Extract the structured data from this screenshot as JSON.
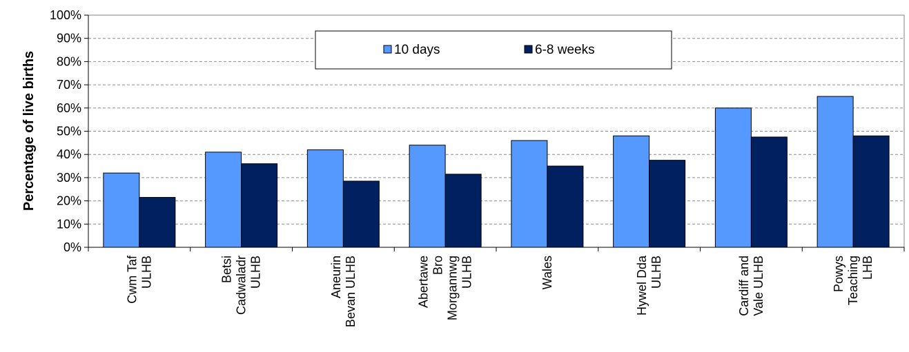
{
  "chart_data": {
    "type": "bar",
    "ylabel": "Percentage of live births",
    "xlabel": "",
    "ylim": [
      0,
      100
    ],
    "yticks": [
      "0%",
      "10%",
      "20%",
      "30%",
      "40%",
      "50%",
      "60%",
      "70%",
      "80%",
      "90%",
      "100%"
    ],
    "grid": "horizontal dashed",
    "legend_position": "top-center",
    "categories": [
      [
        "Cwm Taf",
        "ULHB"
      ],
      [
        "Betsi",
        "Cadwaladr",
        "ULHB"
      ],
      [
        "Aneurin",
        "Bevan ULHB"
      ],
      [
        "Abertawe",
        "Bro",
        "Morgannwg",
        "ULHB"
      ],
      [
        "Wales"
      ],
      [
        "Hywel Dda",
        "ULHB"
      ],
      [
        "Cardiff and",
        "Vale ULHB"
      ],
      [
        "Powys",
        "Teaching",
        "LHB"
      ]
    ],
    "series": [
      {
        "name": "10 days",
        "color": "#5599ff",
        "values": [
          32,
          41,
          42,
          44,
          46,
          48,
          60,
          65
        ]
      },
      {
        "name": "6-8 weeks",
        "color": "#002060",
        "values": [
          21.5,
          36,
          28.5,
          31.5,
          35,
          37.5,
          47.5,
          48
        ]
      }
    ]
  }
}
